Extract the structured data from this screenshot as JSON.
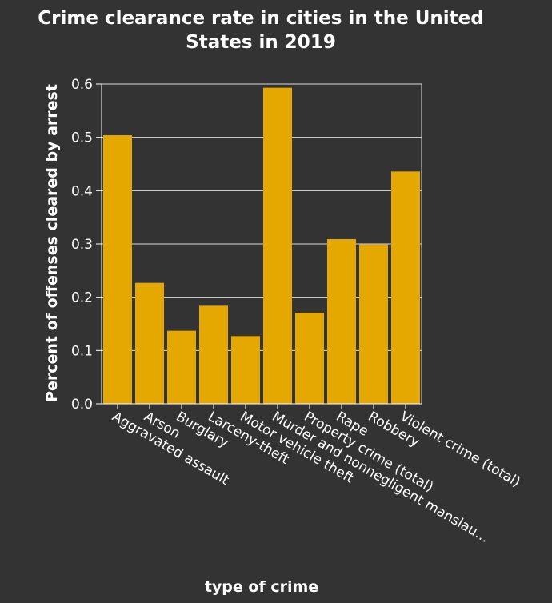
{
  "chart_data": {
    "type": "bar",
    "title_lines": [
      "Crime clearance rate in cities in the United",
      "States in 2019"
    ],
    "xlabel": "type of crime",
    "ylabel": "Percent of offenses cleared by arrest",
    "categories": [
      "Aggravated assault",
      "Arson",
      "Burglary",
      "Larceny-theft",
      "Motor vehicle theft",
      "Murder and nonnegligent manslau...",
      "Property crime (total)",
      "Rape",
      "Robbery",
      "Violent crime (total)"
    ],
    "values": [
      0.504,
      0.227,
      0.137,
      0.184,
      0.127,
      0.593,
      0.171,
      0.309,
      0.299,
      0.436
    ],
    "ylim": [
      0,
      0.6
    ],
    "yticks": [
      "0.0",
      "0.1",
      "0.2",
      "0.3",
      "0.4",
      "0.5",
      "0.6"
    ],
    "grid": true,
    "colors": {
      "bar": "#e5a800",
      "background": "#333333",
      "grid": "#dddddd",
      "text": "#ffffff"
    }
  }
}
